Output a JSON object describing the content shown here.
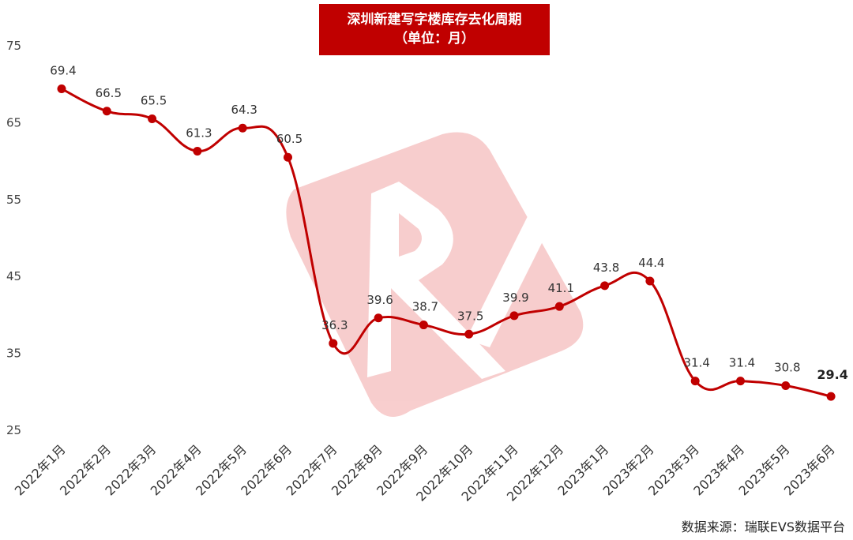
{
  "chart_data": {
    "type": "line",
    "title": "深圳新建写字楼库存去化周期",
    "subtitle": "（单位：月）",
    "xlabel": "",
    "ylabel": "",
    "ylim": [
      25,
      75
    ],
    "yticks": [
      "75",
      "65",
      "55",
      "45",
      "35",
      "25"
    ],
    "grid": false,
    "categories": [
      "2022年1月",
      "2022年2月",
      "2022年3月",
      "2022年4月",
      "2022年5月",
      "2022年6月",
      "2022年7月",
      "2022年8月",
      "2022年9月",
      "2022年10月",
      "2022年11月",
      "2022年12月",
      "2023年1月",
      "2023年2月",
      "2023年3月",
      "2023年4月",
      "2023年5月",
      "2023年6月"
    ],
    "series": [
      {
        "values": [
          69.4,
          66.5,
          65.5,
          61.3,
          64.3,
          60.5,
          36.3,
          39.6,
          38.7,
          37.5,
          39.9,
          41.1,
          43.8,
          44.4,
          31.4,
          31.4,
          30.8,
          29.4
        ]
      }
    ],
    "data_labels": [
      "69.4",
      "66.5",
      "65.5",
      "61.3",
      "64.3",
      "60.5",
      "36.3",
      "39.6",
      "38.7",
      "37.5",
      "39.9",
      "41.1",
      "43.8",
      "44.4",
      "31.4",
      "31.4",
      "30.8",
      "29.4"
    ],
    "line_color": "#c00000"
  },
  "source": "数据来源：瑞联EVS数据平台"
}
